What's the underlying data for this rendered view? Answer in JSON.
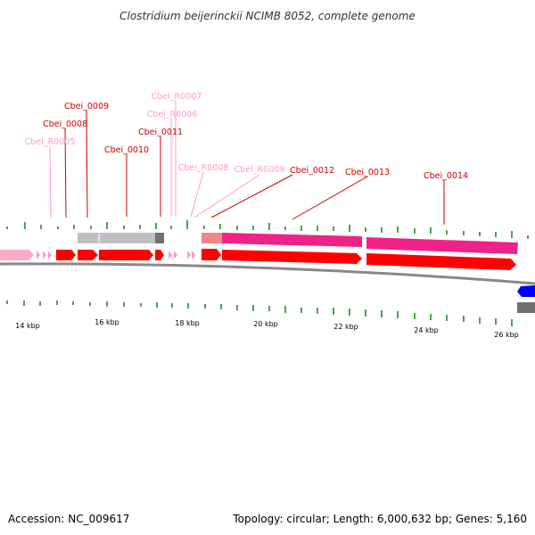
{
  "title": "Clostridium beijerinckii NCIMB 8052, complete genome",
  "footer": {
    "accession": "Accession: NC_009617",
    "summary": "Topology: circular; Length: 6,000,632 bp; Genes: 5,160"
  },
  "colors": {
    "cds": "#ff0000",
    "rna": "#ff99cc",
    "gene_label": "#cc0000",
    "rna_label": "#ff99cc",
    "gc_tick": "#228b22",
    "gene_track": "#c0c0c0",
    "magenta": "#ff3399",
    "blue": "#0000ff"
  },
  "axis": {
    "ticks": [
      {
        "kbp": 14,
        "label": "14 kbp"
      },
      {
        "kbp": 16,
        "label": "16 kbp"
      },
      {
        "kbp": 18,
        "label": "18 kbp"
      },
      {
        "kbp": 20,
        "label": "20 kbp"
      },
      {
        "kbp": 22,
        "label": "22 kbp"
      },
      {
        "kbp": 24,
        "label": "24 kbp"
      },
      {
        "kbp": 26,
        "label": "26 kbp"
      }
    ]
  },
  "gene_labels": [
    {
      "text": "Cbei_R0005",
      "kind": "rna"
    },
    {
      "text": "Cbei_0008",
      "kind": "cds"
    },
    {
      "text": "Cbei_0009",
      "kind": "cds"
    },
    {
      "text": "Cbei_0010",
      "kind": "cds"
    },
    {
      "text": "Cbei_R0007",
      "kind": "rna"
    },
    {
      "text": "Cbei_R0006",
      "kind": "rna"
    },
    {
      "text": "Cbei_0011",
      "kind": "cds"
    },
    {
      "text": "Cbei_R0008",
      "kind": "rna"
    },
    {
      "text": "Cbei_R0009",
      "kind": "rna"
    },
    {
      "text": "Cbei_0012",
      "kind": "cds"
    },
    {
      "text": "Cbei_0013",
      "kind": "cds"
    },
    {
      "text": "Cbei_0014",
      "kind": "cds"
    }
  ]
}
